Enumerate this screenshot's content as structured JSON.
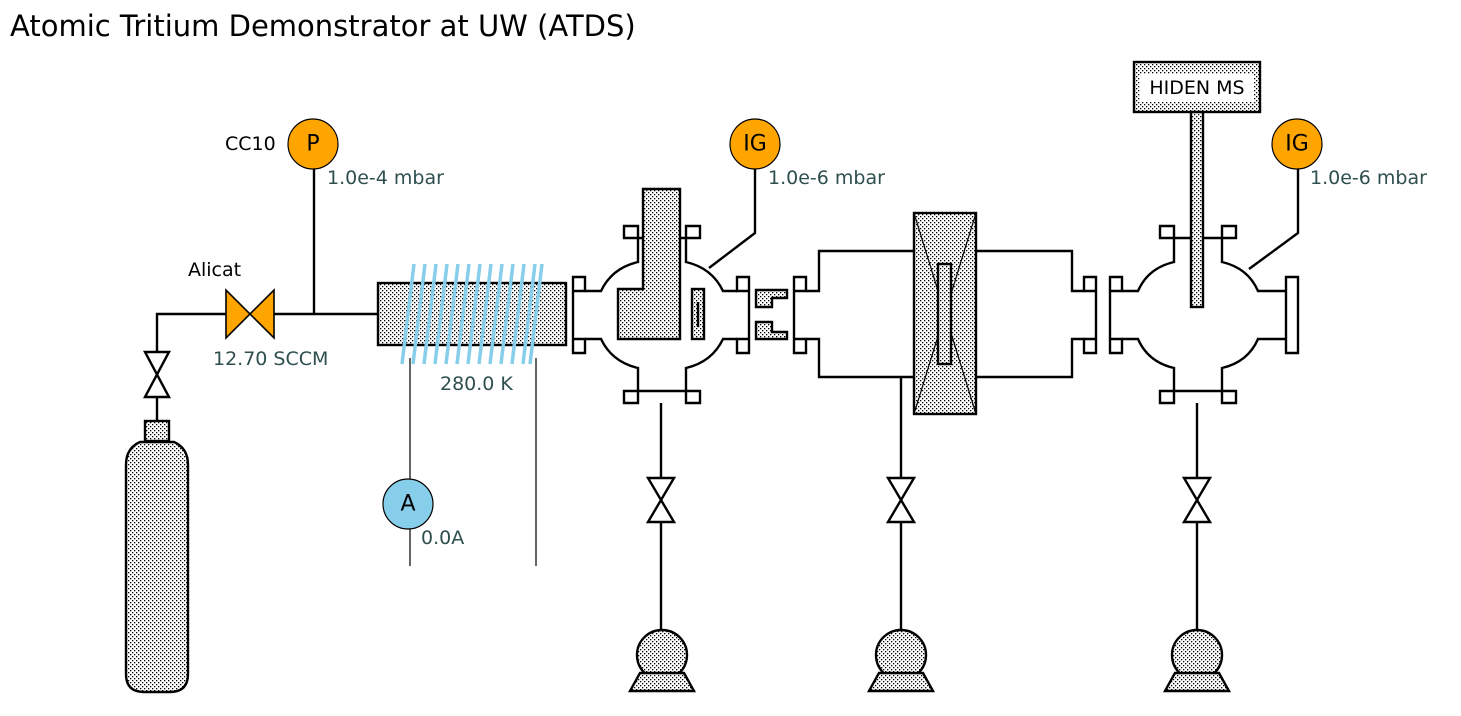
{
  "title": "Atomic Tritium Demonstrator at UW (ATDS)",
  "colors": {
    "gauge": "#ffa500",
    "ammeter": "#87ceeb",
    "coil": "#87ceeb",
    "readout": "#2f4f4f"
  },
  "flow_controller": {
    "label": "Alicat",
    "reading": "12.70 SCCM"
  },
  "pressure_gauge": {
    "name": "CC10",
    "symbol": "P",
    "reading": "1.0e-4 mbar"
  },
  "cracker": {
    "temperature": "280.0 K"
  },
  "ammeter": {
    "symbol": "A",
    "reading": "0.0A"
  },
  "ion_gauge_1": {
    "symbol": "IG",
    "reading": "1.0e-6 mbar"
  },
  "ion_gauge_2": {
    "symbol": "IG",
    "reading": "1.0e-6 mbar"
  },
  "mass_spec": {
    "label": "HIDEN MS"
  }
}
